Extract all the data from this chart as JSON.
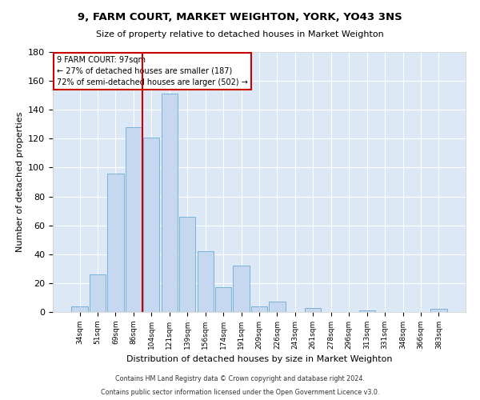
{
  "title": "9, FARM COURT, MARKET WEIGHTON, YORK, YO43 3NS",
  "subtitle": "Size of property relative to detached houses in Market Weighton",
  "xlabel": "Distribution of detached houses by size in Market Weighton",
  "ylabel": "Number of detached properties",
  "categories": [
    "34sqm",
    "51sqm",
    "69sqm",
    "86sqm",
    "104sqm",
    "121sqm",
    "139sqm",
    "156sqm",
    "174sqm",
    "191sqm",
    "209sqm",
    "226sqm",
    "243sqm",
    "261sqm",
    "278sqm",
    "296sqm",
    "313sqm",
    "331sqm",
    "348sqm",
    "366sqm",
    "383sqm"
  ],
  "values": [
    4,
    26,
    96,
    128,
    121,
    151,
    66,
    42,
    17,
    32,
    4,
    7,
    0,
    3,
    0,
    0,
    1,
    0,
    0,
    0,
    2
  ],
  "bar_color": "#c5d8f0",
  "bar_edge_color": "#6aaad4",
  "property_line_x": 3.5,
  "marker_label": "9 FARM COURT: 97sqm",
  "annotation_line1": "← 27% of detached houses are smaller (187)",
  "annotation_line2": "72% of semi-detached houses are larger (502) →",
  "ylim": [
    0,
    180
  ],
  "yticks": [
    0,
    20,
    40,
    60,
    80,
    100,
    120,
    140,
    160,
    180
  ],
  "property_line_color": "#cc0000",
  "background_color": "#ffffff",
  "axes_bg_color": "#dce8f5",
  "grid_color": "#ffffff",
  "footer1": "Contains HM Land Registry data © Crown copyright and database right 2024.",
  "footer2": "Contains public sector information licensed under the Open Government Licence v3.0."
}
